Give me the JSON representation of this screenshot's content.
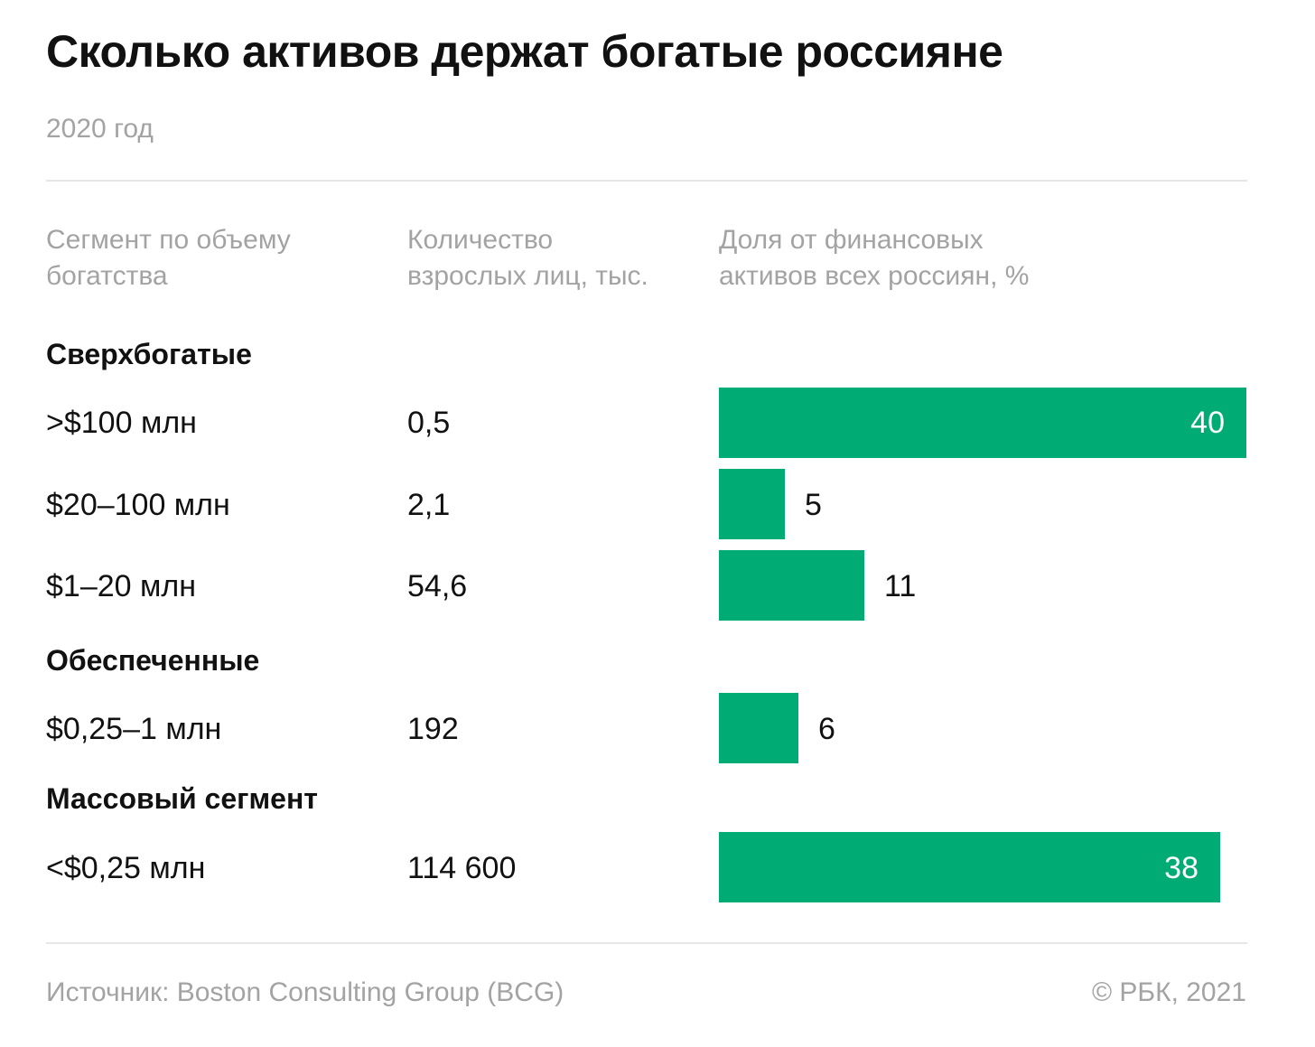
{
  "title": "Сколько активов держат богатые россияне",
  "subtitle": "2020 год",
  "columns": {
    "segment": [
      "Сегмент по объему",
      "богатства"
    ],
    "count": [
      "Количество",
      "взрослых лиц, тыс."
    ],
    "share": [
      "Доля от финансовых",
      "активов всех россиян, %"
    ]
  },
  "groups": [
    {
      "label": "Сверхбогатые"
    },
    {
      "label": "Обеспеченные"
    },
    {
      "label": "Массовый сегмент"
    }
  ],
  "rows": [
    {
      "label": ">$100 млн",
      "count": "0,5",
      "value": 40,
      "value_label": "40"
    },
    {
      "label": "$20–100 млн",
      "count": "2,1",
      "value": 5,
      "value_label": "5"
    },
    {
      "label": "$1–20 млн",
      "count": "54,6",
      "value": 11,
      "value_label": "11"
    },
    {
      "label": "$0,25–1 млн",
      "count": "192",
      "value": 6,
      "value_label": "6"
    },
    {
      "label": "<$0,25 млн",
      "count": "114 600",
      "value": 38,
      "value_label": "38"
    }
  ],
  "colors": {
    "bar": "#00ac73",
    "muted_text": "#a3a3a3"
  },
  "chart_data": {
    "type": "bar",
    "orientation": "horizontal",
    "title": "Сколько активов держат богатые россияне",
    "subtitle": "2020 год",
    "categories": [
      ">$100 млн",
      "$20–100 млн",
      "$1–20 млн",
      "$0,25–1 млн",
      "<$0,25 млн"
    ],
    "groups": [
      "Сверхбогатые",
      "Сверхбогатые",
      "Сверхбогатые",
      "Обеспеченные",
      "Массовый сегмент"
    ],
    "series": [
      {
        "name": "Доля от финансовых активов всех россиян, %",
        "values": [
          40,
          5,
          11,
          6,
          38
        ]
      }
    ],
    "table_column": {
      "name": "Количество взрослых лиц, тыс.",
      "values": [
        "0,5",
        "2,1",
        "54,6",
        "192",
        "114 600"
      ]
    },
    "xlim": [
      0,
      40
    ]
  },
  "footer": {
    "source": "Источник: Boston Consulting Group (BCG)",
    "copyright": "© РБК, 2021"
  }
}
